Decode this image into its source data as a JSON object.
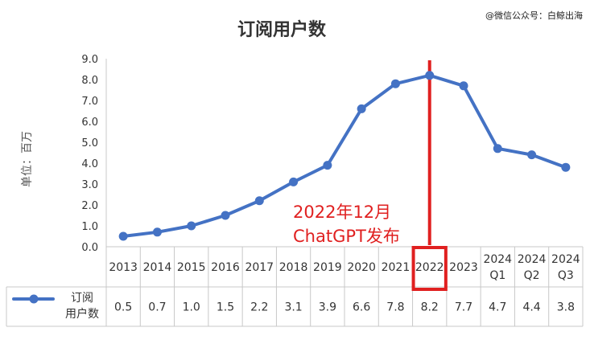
{
  "watermark": "@微信公众号：白鲸出海",
  "chart_data": {
    "type": "line",
    "title": "订阅用户数",
    "ylabel": "单位：百万",
    "ylim": [
      0,
      9
    ],
    "yticks": [
      "0.0",
      "1.0",
      "2.0",
      "3.0",
      "4.0",
      "5.0",
      "6.0",
      "7.0",
      "8.0",
      "9.0"
    ],
    "categories": [
      [
        "2013"
      ],
      [
        "2014"
      ],
      [
        "2015"
      ],
      [
        "2016"
      ],
      [
        "2017"
      ],
      [
        "2018"
      ],
      [
        "2019"
      ],
      [
        "2020"
      ],
      [
        "2021"
      ],
      [
        "2022"
      ],
      [
        "2023"
      ],
      [
        "2024",
        "Q1"
      ],
      [
        "2024",
        "Q2"
      ],
      [
        "2024",
        "Q3"
      ]
    ],
    "series": [
      {
        "name": [
          "订阅",
          "用户数"
        ],
        "values": [
          0.5,
          0.7,
          1.0,
          1.5,
          2.2,
          3.1,
          3.9,
          6.6,
          7.8,
          8.2,
          7.7,
          4.7,
          4.4,
          3.8
        ],
        "labels": [
          "0.5",
          "0.7",
          "1.0",
          "1.5",
          "2.2",
          "3.1",
          "3.9",
          "6.6",
          "7.8",
          "8.2",
          "7.7",
          "4.7",
          "4.4",
          "3.8"
        ],
        "color": "#4472c4"
      }
    ],
    "highlight": {
      "category_index": 9,
      "color": "#e02020",
      "annotation": [
        "2022年12月",
        "ChatGPT发布"
      ]
    },
    "grid": false,
    "legend": "data-table-left"
  }
}
